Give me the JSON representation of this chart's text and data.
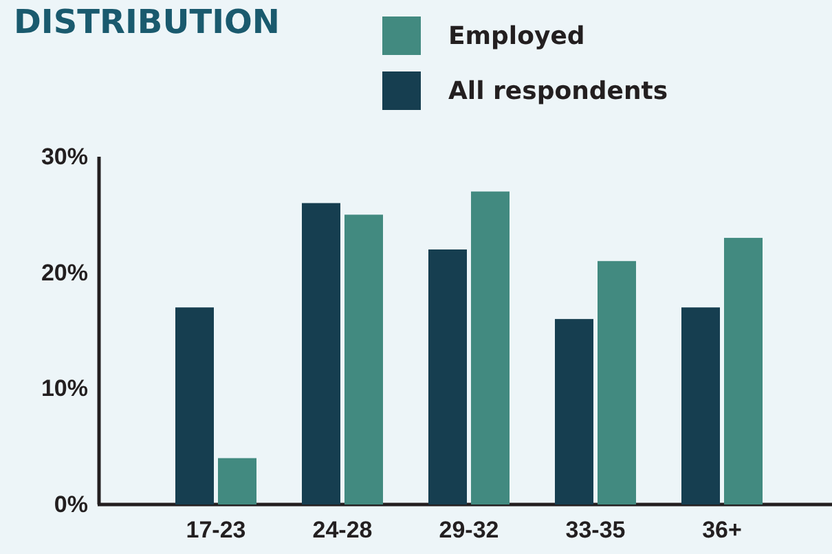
{
  "chart_data": {
    "type": "bar",
    "title": "DISTRIBUTION",
    "categories": [
      "17-23",
      "24-28",
      "29-32",
      "33-35",
      "36+"
    ],
    "series": [
      {
        "name": "All respondents",
        "color": "#163e50",
        "values": [
          17,
          26,
          22,
          16,
          17
        ]
      },
      {
        "name": "Employed",
        "color": "#428a80",
        "values": [
          4,
          25,
          27,
          21,
          23
        ]
      }
    ],
    "ylim": [
      0,
      30
    ],
    "yticks": [
      {
        "value": 0,
        "label": "0%"
      },
      {
        "value": 10,
        "label": "10%"
      },
      {
        "value": 20,
        "label": "20%"
      },
      {
        "value": 30,
        "label": "30%"
      }
    ],
    "grid": false,
    "legend": "top"
  }
}
